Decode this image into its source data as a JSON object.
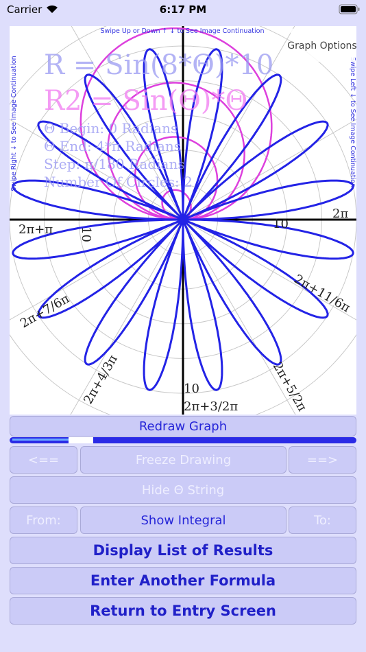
{
  "status_bar": {
    "carrier": "Carrier",
    "time": "6:17 PM"
  },
  "graph": {
    "hint_top": "Swipe Up or Down ↑ ↓ to See Image Continuation",
    "hint_left": "Swipe Right ↓ to See Image Continuation",
    "hint_right": "Swipe Left ↓ to See Image Continuation",
    "options_button": "Graph Options",
    "formula_1": "R = Sin(8*Θ)*10",
    "formula_2": "R2 = Sin(Θ)*Θ",
    "details": [
      "Θ Begin: 0 Radians",
      "Θ End: 4*π Radians",
      "Step: π/180 Radians",
      "Number Of Circles: 2"
    ],
    "axis_labels": [
      "2π",
      "2π+π",
      "2π+7/6π",
      "2π+4/3π",
      "10",
      "2π+3/2π",
      "2π+5/2π",
      "2π+11/6π",
      "10",
      "10"
    ]
  },
  "controls": {
    "redraw": "Redraw Graph",
    "prev": "<==",
    "freeze": "Freeze Drawing",
    "next": "==>",
    "hide_string": "Hide Θ String",
    "from": "From:",
    "show_integral": "Show Integral",
    "to": "To:",
    "display_list": "Display List of Results",
    "enter_another": "Enter Another Formula",
    "return_entry": "Return to Entry Screen"
  }
}
